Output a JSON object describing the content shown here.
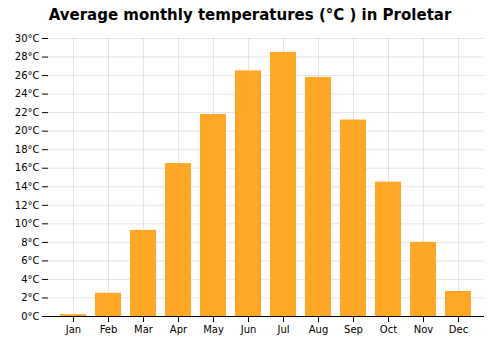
{
  "chart_data": {
    "type": "bar",
    "title": "Average monthly temperatures (°C ) in Proletar",
    "categories": [
      "Jan",
      "Feb",
      "Mar",
      "Apr",
      "May",
      "Jun",
      "Jul",
      "Aug",
      "Sep",
      "Oct",
      "Nov",
      "Dec"
    ],
    "values": [
      0.2,
      2.5,
      9.3,
      16.5,
      21.8,
      26.5,
      28.5,
      25.8,
      21.2,
      14.5,
      8.0,
      2.7
    ],
    "color": "#FFA726",
    "ylim": [
      0,
      30
    ],
    "yticks": [
      {
        "value": 0,
        "label": "0°C"
      },
      {
        "value": 2,
        "label": "2°C"
      },
      {
        "value": 4,
        "label": "4°C"
      },
      {
        "value": 6,
        "label": "6°C"
      },
      {
        "value": 8,
        "label": "8°C"
      },
      {
        "value": 10,
        "label": "10°C"
      },
      {
        "value": 12,
        "label": "12°C"
      },
      {
        "value": 14,
        "label": "14°C"
      },
      {
        "value": 16,
        "label": "16°C"
      },
      {
        "value": 18,
        "label": "18°C"
      },
      {
        "value": 20,
        "label": "20°C"
      },
      {
        "value": 22,
        "label": "22°C"
      },
      {
        "value": 24,
        "label": "24°C"
      },
      {
        "value": 26,
        "label": "26°C"
      },
      {
        "value": 28,
        "label": "28°C"
      },
      {
        "value": 30,
        "label": "30°C"
      }
    ],
    "grid": true
  }
}
